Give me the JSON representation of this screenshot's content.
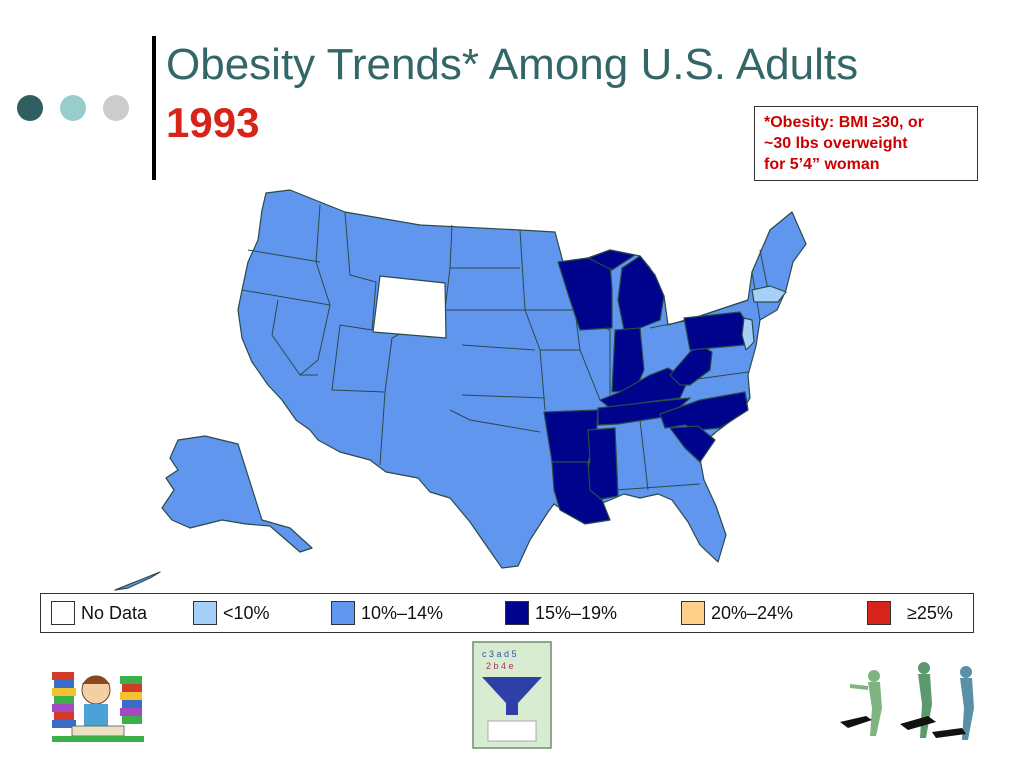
{
  "header": {
    "title": "Obesity Trends* Among U.S. Adults",
    "year": "1993"
  },
  "footnote": {
    "line1": "*Obesity: BMI ≥30, or",
    "line2": "~30 lbs overweight",
    "line3": "for 5’4” woman"
  },
  "colors": {
    "title": "#336666",
    "year": "#d8231b",
    "dot1": "#2f5f60",
    "dot2": "#99cccc",
    "dot3": "#cccccc",
    "no_data": "#ffffff",
    "lt10": "#a6d0f7",
    "c10_14": "#6196ee",
    "c15_19": "#00048c",
    "c20_24": "#ffd08a",
    "ge25": "#d8231b"
  },
  "legend": [
    {
      "label": "No Data",
      "color": "#ffffff"
    },
    {
      "label": "<10%",
      "color": "#a6d0f7"
    },
    {
      "label": "10%–14%",
      "color": "#6196ee"
    },
    {
      "label": "15%–19%",
      "color": "#00048c"
    },
    {
      "label": "20%–24%",
      "color": "#ffd08a"
    },
    {
      "label": "≥25%",
      "color": "#d8231b"
    }
  ],
  "states": {
    "no_data": [
      "Wyoming"
    ],
    "lt10": [
      "Massachusetts",
      "New Jersey"
    ],
    "c15_19": [
      "Wisconsin",
      "Michigan",
      "Indiana",
      "Kentucky",
      "West Virginia",
      "Pennsylvania",
      "Tennessee",
      "North Carolina",
      "South Carolina",
      "Arkansas",
      "Louisiana",
      "Mississippi"
    ],
    "c10_14": [
      "All other states"
    ]
  },
  "clipart": {
    "left": "student-with-books-icon",
    "center": "funnel-icon",
    "right": "dancers-icon"
  }
}
